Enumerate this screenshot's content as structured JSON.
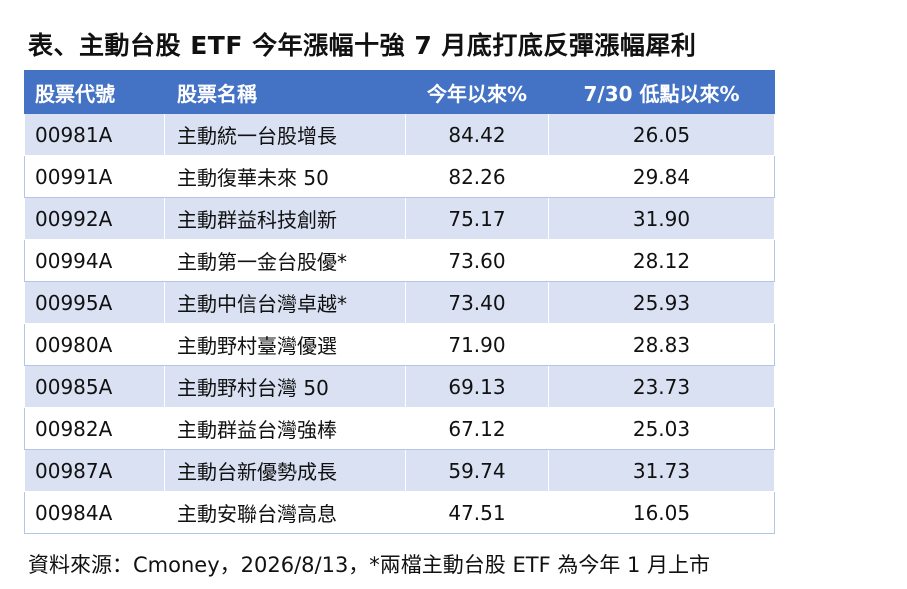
{
  "title": "表、主動台股 ETF 今年漲幅十強  7 月底打底反彈漲幅犀利",
  "table": {
    "headers": [
      "股票代號",
      "股票名稱",
      "今年以來%",
      "7/30 低點以來%"
    ],
    "rows": [
      {
        "code": "00981A",
        "name": "主動統一台股增長",
        "ytd": "84.42",
        "since_low": "26.05"
      },
      {
        "code": "00991A",
        "name": "主動復華未來 50",
        "ytd": "82.26",
        "since_low": "29.84"
      },
      {
        "code": "00992A",
        "name": "主動群益科技創新",
        "ytd": "75.17",
        "since_low": "31.90"
      },
      {
        "code": "00994A",
        "name": "主動第一金台股優*",
        "ytd": "73.60",
        "since_low": "28.12"
      },
      {
        "code": "00995A",
        "name": "主動中信台灣卓越*",
        "ytd": "73.40",
        "since_low": "25.93"
      },
      {
        "code": "00980A",
        "name": "主動野村臺灣優選",
        "ytd": "71.90",
        "since_low": "28.83"
      },
      {
        "code": "00985A",
        "name": "主動野村台灣 50",
        "ytd": "69.13",
        "since_low": "23.73"
      },
      {
        "code": "00982A",
        "name": "主動群益台灣強棒",
        "ytd": "67.12",
        "since_low": "25.03"
      },
      {
        "code": "00987A",
        "name": "主動台新優勢成長",
        "ytd": "59.74",
        "since_low": "31.73"
      },
      {
        "code": "00984A",
        "name": "主動安聯台灣高息",
        "ytd": "47.51",
        "since_low": "16.05"
      }
    ]
  },
  "footer": "資料來源：Cmoney，2026/8/13，*兩檔主動台股 ETF 為今年 1 月上市",
  "colors": {
    "header_bg": "#4472c4",
    "header_text": "#ffffff",
    "band_row": "#d9e1f2",
    "plain_row": "#ffffff"
  }
}
